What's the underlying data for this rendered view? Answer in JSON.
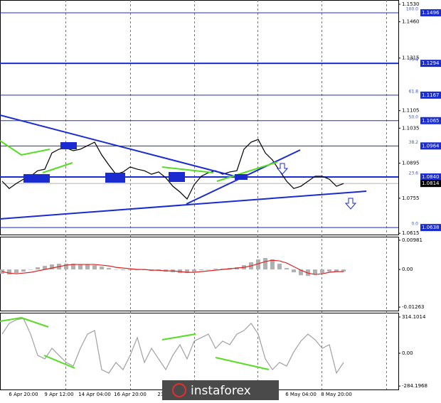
{
  "chart_data": [
    {
      "type": "line",
      "color": "#000000",
      "x": [
        null,
        null,
        null,
        "6 Apr 20:00",
        null,
        null,
        null,
        null,
        "9 Apr 12:00",
        null,
        null,
        null,
        null,
        "14 Apr 04:00",
        null,
        null,
        null,
        null,
        "16 Apr 20:00",
        null,
        null,
        null,
        null,
        "21 Apr",
        null,
        null,
        null,
        null,
        null,
        null,
        null,
        null,
        null,
        null,
        null,
        null,
        null,
        null,
        null,
        null,
        null,
        null,
        "6 May 04:00",
        null,
        null,
        null,
        null,
        "8 May 20:00",
        null
      ],
      "values": [
        1.0823,
        1.0794,
        1.0814,
        1.0831,
        1.0843,
        1.0865,
        1.0871,
        1.0936,
        1.0951,
        1.0956,
        1.0945,
        1.0951,
        1.0965,
        1.0979,
        1.0928,
        1.0888,
        1.0851,
        1.086,
        1.088,
        1.0871,
        1.0865,
        1.0851,
        1.086,
        1.0837,
        1.0803,
        1.078,
        1.0752,
        1.0809,
        1.0843,
        1.0857,
        1.0865,
        1.0851,
        1.086,
        1.0865,
        1.0951,
        1.0979,
        1.099,
        1.0936,
        1.0908,
        1.0865,
        1.0823,
        1.0794,
        1.0803,
        1.0823,
        1.0843,
        1.0843,
        1.0831,
        1.0803,
        1.0814
      ],
      "ylim": [
        1.061,
        1.1547
      ],
      "yticks": [
        {
          "value": 1.153,
          "label": "1.1530"
        },
        {
          "value": 1.146,
          "label": "1.1460"
        },
        1.1315,
        1.1105,
        1.1035,
        1.0895,
        1.0755,
        1.0615
      ],
      "fib_levels": [
        {
          "ratio": "100.0",
          "price": 1.1496
        },
        {
          "ratio": "76.4",
          "price": 1.1294,
          "thick": true
        },
        {
          "ratio": "61.8",
          "price": 1.1167
        },
        {
          "ratio": "50.0",
          "price": 1.1065
        },
        {
          "ratio": "38.2",
          "price": 1.0964
        },
        {
          "ratio": "23.6",
          "price": {
            "value": 1.084,
            "label": "1.0840"
          },
          "thick": true
        },
        {
          "ratio": "0.0",
          "price": 1.0638
        }
      ],
      "last_price": 1.0814,
      "watermark": "instaforex"
    },
    {
      "type": "bar",
      "color": "#b0b0b0",
      "values": [
        -0.00144,
        -0.00168,
        -0.0012,
        -0.00072,
        0,
        0.00072,
        0.0012,
        0.00168,
        0.00192,
        0.00192,
        0.00192,
        0.00168,
        0.00168,
        0.00144,
        0.00096,
        0.00048,
        0,
        -0.00024,
        -0.00024,
        -0.00024,
        -0.00024,
        -0.00048,
        -0.00048,
        -0.00072,
        -0.00096,
        -0.0012,
        -0.0012,
        -0.00072,
        -0.00024,
        0,
        0.00024,
        0.00024,
        0.00048,
        0.00072,
        0.00144,
        0.0024,
        0.00336,
        0.00384,
        0.00336,
        0.00192,
        0.00048,
        -0.00096,
        -0.00192,
        -0.00216,
        -0.00168,
        -0.0012,
        -0.00072,
        -0.00072,
        -0.00072
      ],
      "signal": {
        "color": "#e02020",
        "values": [
          -0.00072,
          -0.0012,
          -0.00144,
          -0.0012,
          -0.00096,
          -0.00048,
          0,
          0.00048,
          0.00096,
          0.00144,
          0.00168,
          0.00168,
          0.00168,
          0.00168,
          0.00144,
          0.0012,
          0.00072,
          0.00048,
          0.00024,
          0,
          0,
          -0.00024,
          -0.00024,
          -0.00048,
          -0.00048,
          -0.00072,
          -0.00096,
          -0.00096,
          -0.00072,
          -0.00048,
          -0.00024,
          0,
          0.00024,
          0.00048,
          0.00072,
          0.0012,
          0.00192,
          0.00264,
          0.00312,
          0.00288,
          0.00216,
          0.00096,
          -0.00024,
          -0.0012,
          -0.00168,
          -0.00144,
          -0.00096,
          -0.00072,
          -0.00072
        ]
      },
      "ylim": [
        -0.0138,
        0.011
      ],
      "yticks": [
        0.00981,
        {
          "value": 0,
          "label": "0.00"
        },
        -0.01263
      ]
    },
    {
      "type": "line",
      "color": "#a0a0a0",
      "values": [
        166,
        259,
        290,
        302,
        166,
        -18,
        -49,
        43,
        -18,
        -80,
        -111,
        43,
        166,
        197,
        -142,
        -172,
        -80,
        -142,
        -18,
        136,
        -80,
        43,
        -49,
        -142,
        -18,
        74,
        -49,
        105,
        136,
        166,
        43,
        105,
        74,
        166,
        197,
        259,
        166,
        -49,
        -142,
        -80,
        -111,
        12,
        105,
        166,
        117,
        43,
        74,
        -172,
        -80
      ],
      "ylim": [
        -314,
        351
      ],
      "yticks": [
        314.1014,
        {
          "value": 0,
          "label": "0.00"
        },
        -284.1968
      ]
    }
  ]
}
